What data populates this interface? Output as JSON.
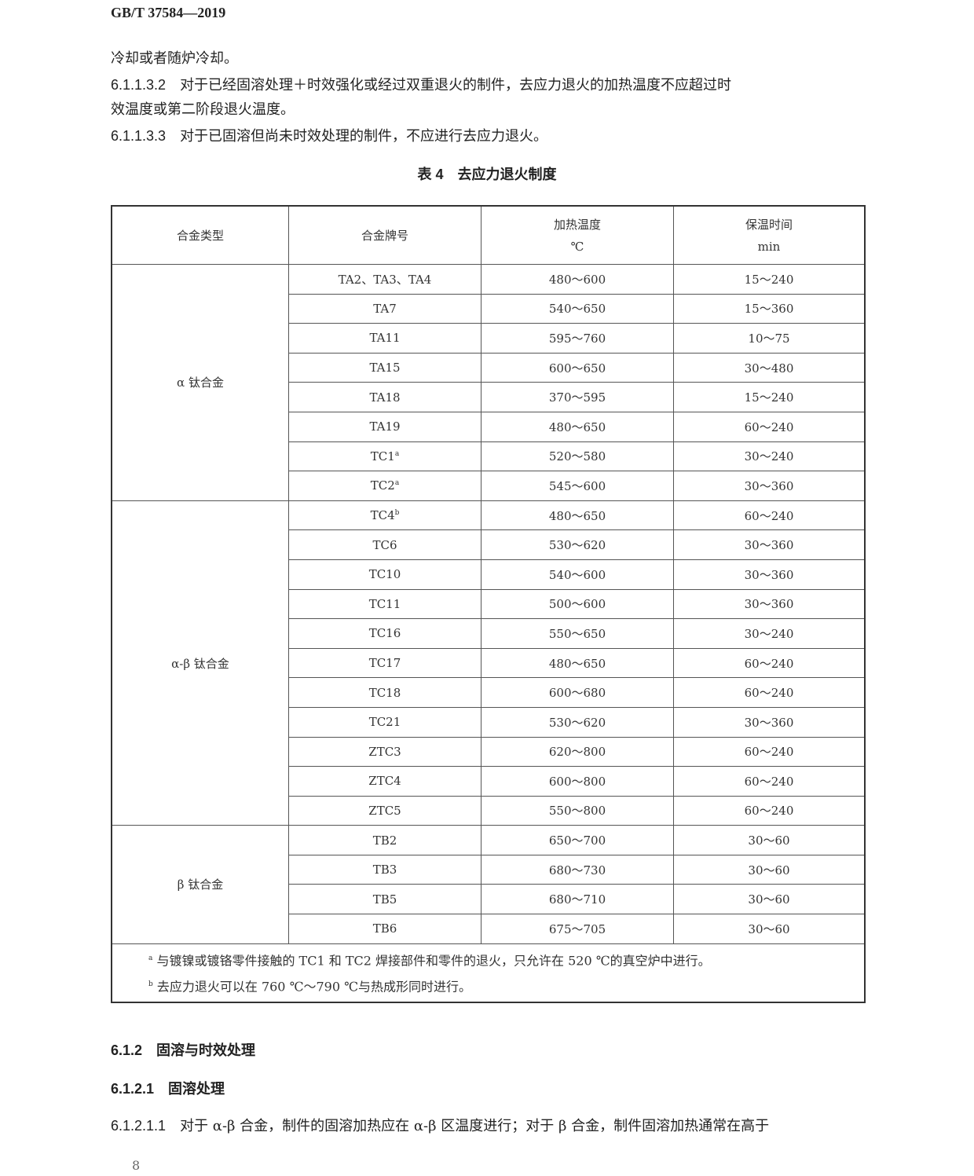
{
  "header": {
    "standard": "GB/T 37584—2019"
  },
  "paragraphs": [
    {
      "num": "",
      "text": "冷却或者随炉冷却。"
    },
    {
      "num": "6.1.1.3.2",
      "text": "对于已经固溶处理＋时效强化或经过双重退火的制件，去应力退火的加热温度不应超过时",
      "cont": "效温度或第二阶段退火温度。"
    },
    {
      "num": "6.1.1.3.3",
      "text": "对于已固溶但尚未时效处理的制件，不应进行去应力退火。"
    }
  ],
  "table": {
    "caption": "表 4　去应力退火制度",
    "headers": [
      "合金类型",
      "合金牌号",
      "加热温度",
      "℃",
      "保温时间",
      "min"
    ],
    "groups": [
      {
        "type": "α 钛合金",
        "rows": [
          {
            "grade": "TA2、TA3、TA4",
            "sup": "",
            "temp": "480～600",
            "time": "15～240"
          },
          {
            "grade": "TA7",
            "sup": "",
            "temp": "540～650",
            "time": "15～360"
          },
          {
            "grade": "TA11",
            "sup": "",
            "temp": "595～760",
            "time": "10～75"
          },
          {
            "grade": "TA15",
            "sup": "",
            "temp": "600～650",
            "time": "30～480"
          },
          {
            "grade": "TA18",
            "sup": "",
            "temp": "370～595",
            "time": "15～240"
          },
          {
            "grade": "TA19",
            "sup": "",
            "temp": "480～650",
            "time": "60～240"
          },
          {
            "grade": "TC1",
            "sup": "a",
            "temp": "520～580",
            "time": "30～240"
          },
          {
            "grade": "TC2",
            "sup": "a",
            "temp": "545～600",
            "time": "30～360"
          }
        ]
      },
      {
        "type": "α-β 钛合金",
        "rows": [
          {
            "grade": "TC4",
            "sup": "b",
            "temp": "480～650",
            "time": "60～240"
          },
          {
            "grade": "TC6",
            "sup": "",
            "temp": "530～620",
            "time": "30～360"
          },
          {
            "grade": "TC10",
            "sup": "",
            "temp": "540～600",
            "time": "30～360"
          },
          {
            "grade": "TC11",
            "sup": "",
            "temp": "500～600",
            "time": "30～360"
          },
          {
            "grade": "TC16",
            "sup": "",
            "temp": "550～650",
            "time": "30～240"
          },
          {
            "grade": "TC17",
            "sup": "",
            "temp": "480～650",
            "time": "60～240"
          },
          {
            "grade": "TC18",
            "sup": "",
            "temp": "600～680",
            "time": "60～240"
          },
          {
            "grade": "TC21",
            "sup": "",
            "temp": "530～620",
            "time": "30～360"
          },
          {
            "grade": "ZTC3",
            "sup": "",
            "temp": "620～800",
            "time": "60～240"
          },
          {
            "grade": "ZTC4",
            "sup": "",
            "temp": "600～800",
            "time": "60～240"
          },
          {
            "grade": "ZTC5",
            "sup": "",
            "temp": "550～800",
            "time": "60～240"
          }
        ]
      },
      {
        "type": "β 钛合金",
        "rows": [
          {
            "grade": "TB2",
            "sup": "",
            "temp": "650～700",
            "time": "30～60"
          },
          {
            "grade": "TB3",
            "sup": "",
            "temp": "680～730",
            "time": "30～60"
          },
          {
            "grade": "TB5",
            "sup": "",
            "temp": "680～710",
            "time": "30～60"
          },
          {
            "grade": "TB6",
            "sup": "",
            "temp": "675～705",
            "time": "30～60"
          }
        ]
      }
    ],
    "footnotes": [
      {
        "mark": "a",
        "text": "与镀镍或镀铬零件接触的 TC1 和 TC2 焊接部件和零件的退火，只允许在 520 ℃的真空炉中进行。"
      },
      {
        "mark": "b",
        "text": "去应力退火可以在 760 ℃～790 ℃与热成形同时进行。"
      }
    ]
  },
  "sections": [
    {
      "num": "6.1.2",
      "title": "固溶与时效处理"
    },
    {
      "num": "6.1.2.1",
      "title": "固溶处理"
    }
  ],
  "last_paragraph": {
    "num": "6.1.2.1.1",
    "text": "对于 α-β 合金，制件的固溶加热应在 α-β 区温度进行；对于 β 合金，制件固溶加热通常在高于"
  },
  "page_number": "8"
}
